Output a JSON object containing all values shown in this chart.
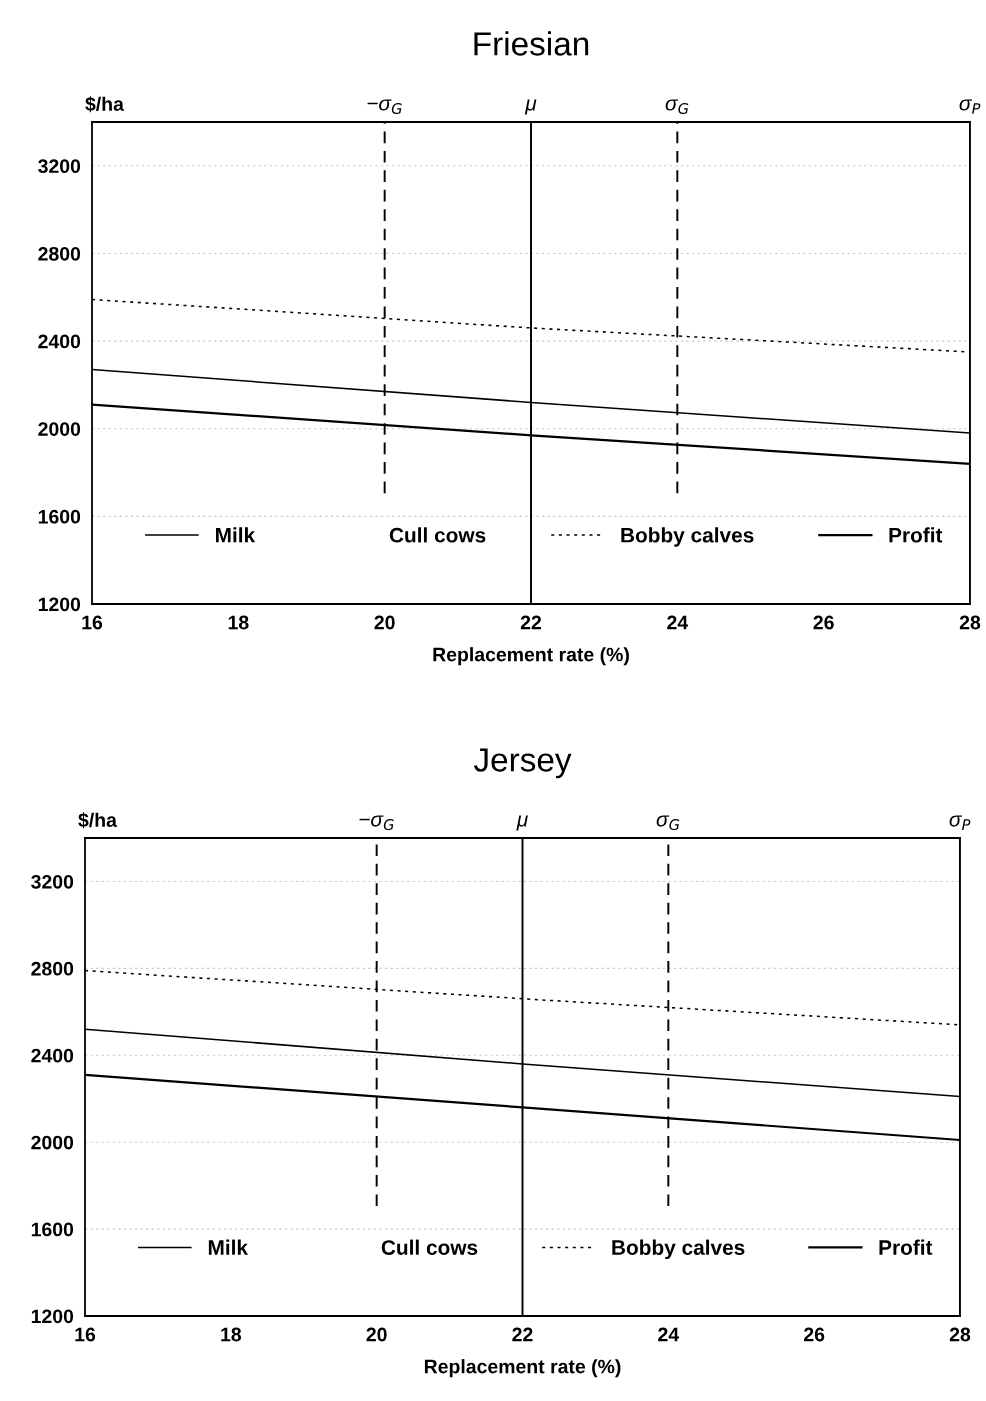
{
  "chart_data": [
    {
      "type": "line",
      "title": "Friesian",
      "xlabel": "Replacement rate (%)",
      "ylabel": "$/ha",
      "x": [
        16,
        22,
        28
      ],
      "xlim": [
        16,
        28
      ],
      "xticks": [
        16,
        18,
        20,
        22,
        24,
        26,
        28
      ],
      "ylim": [
        1200,
        3400
      ],
      "yticks": [
        1200,
        1600,
        2000,
        2400,
        2800,
        3200
      ],
      "grid": "y",
      "legend": "bottom",
      "series": [
        {
          "name": "Milk",
          "color": "#000000",
          "values": [
            2270,
            2120,
            1980
          ],
          "line_style": "solid"
        },
        {
          "name": "Cull cows",
          "color": "#000000",
          "values": [
            null,
            null,
            null
          ],
          "line_style": "none"
        },
        {
          "name": "Bobby calves",
          "color": "#000000",
          "values": [
            2590,
            2460,
            2350
          ],
          "line_style": "dotted"
        },
        {
          "name": "Profit",
          "color": "#000000",
          "values": [
            2110,
            1970,
            1840
          ],
          "line_style": "solid"
        }
      ],
      "ref_lines": [
        {
          "axis": "x",
          "value": 20,
          "label": "−σ$_{G}$",
          "line_style": "dashed",
          "color": "#000000"
        },
        {
          "axis": "x",
          "value": 22,
          "label": "μ",
          "line_style": "solid",
          "color": "#000000"
        },
        {
          "axis": "x",
          "value": 24,
          "label": "σ$_{G}$",
          "line_style": "dashed",
          "color": "#000000"
        },
        {
          "axis": "x",
          "value": 28,
          "label": "σ$_{P}$",
          "line_style": "solid",
          "color": "#000000"
        }
      ]
    },
    {
      "type": "line",
      "title": "Jersey",
      "xlabel": "Replacement rate (%)",
      "ylabel": "$/ha",
      "x": [
        16,
        22,
        28
      ],
      "xlim": [
        16,
        28
      ],
      "xticks": [
        16,
        18,
        20,
        22,
        24,
        26,
        28
      ],
      "ylim": [
        1200,
        3400
      ],
      "yticks": [
        1200,
        1600,
        2000,
        2400,
        2800,
        3200
      ],
      "grid": "y",
      "legend": "bottom",
      "series": [
        {
          "name": "Milk",
          "color": "#000000",
          "values": [
            2520,
            2360,
            2210
          ],
          "line_style": "solid"
        },
        {
          "name": "Cull cows",
          "color": "#000000",
          "values": [
            null,
            null,
            null
          ],
          "line_style": "none"
        },
        {
          "name": "Bobby calves",
          "color": "#000000",
          "values": [
            2790,
            2660,
            2540
          ],
          "line_style": "dotted"
        },
        {
          "name": "Profit",
          "color": "#000000",
          "values": [
            2310,
            2160,
            2010
          ],
          "line_style": "solid"
        }
      ],
      "ref_lines": [
        {
          "axis": "x",
          "value": 20,
          "label": "−σ$_{G}$",
          "line_style": "dashed",
          "color": "#000000"
        },
        {
          "axis": "x",
          "value": 22,
          "label": "μ",
          "line_style": "solid",
          "color": "#000000"
        },
        {
          "axis": "x",
          "value": 24,
          "label": "σ$_{G}$",
          "line_style": "dashed",
          "color": "#000000"
        },
        {
          "axis": "x",
          "value": 28,
          "label": "σ$_{P}$",
          "line_style": "solid",
          "color": "#000000"
        }
      ]
    }
  ]
}
